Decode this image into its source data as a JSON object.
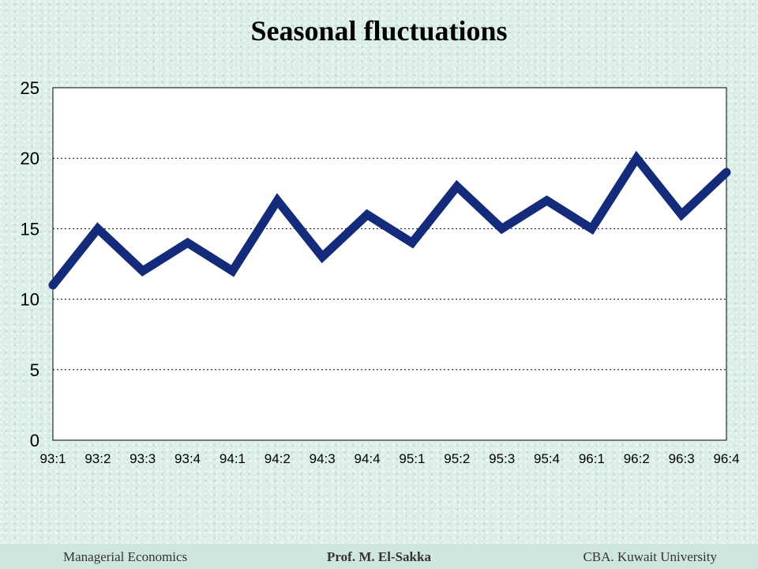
{
  "page": {
    "title": "Seasonal fluctuations"
  },
  "footer": {
    "left": "Managerial Economics",
    "center": "Prof. M. El-Sakka",
    "right": "CBA. Kuwait University"
  },
  "colors": {
    "line": "#142a7a",
    "plot_bg": "#ffffff",
    "grid": "#000000"
  },
  "chart_data": {
    "type": "line",
    "title": "Seasonal fluctuations",
    "xlabel": "",
    "ylabel": "",
    "categories": [
      "93:1",
      "93:2",
      "93:3",
      "93:4",
      "94:1",
      "94:2",
      "94:3",
      "94:4",
      "95:1",
      "95:2",
      "95:3",
      "95:4",
      "96:1",
      "96:2",
      "96:3",
      "96:4"
    ],
    "series": [
      {
        "values": [
          11,
          15,
          12,
          14,
          12,
          17,
          13,
          16,
          14,
          18,
          15,
          17,
          15,
          20,
          16,
          19
        ]
      }
    ],
    "ylim": [
      0,
      25
    ],
    "yticks": [
      0,
      5,
      10,
      15,
      20,
      25
    ],
    "grid": "horizontal dotted",
    "legend": "none"
  }
}
